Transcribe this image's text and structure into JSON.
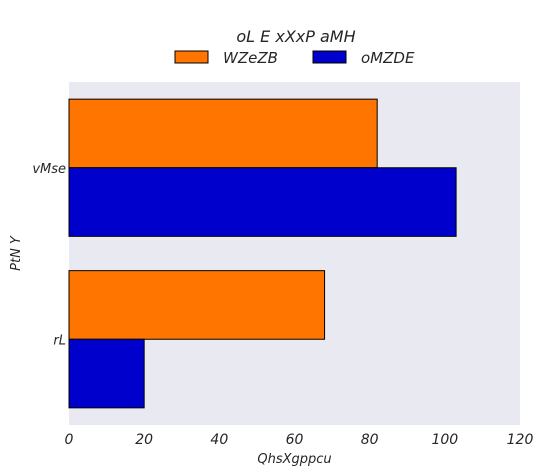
{
  "chart_data": {
    "type": "bar",
    "orientation": "horizontal",
    "legend_title": "oL E xXxP aMH",
    "legend_placement": "top-center",
    "xlabel": "QhsXgppcu",
    "ylabel": "PtN Y",
    "xlim": [
      0,
      120
    ],
    "xticks": [
      0,
      20,
      40,
      60,
      80,
      100,
      120
    ],
    "categories": [
      "vMse",
      "rL"
    ],
    "series": [
      {
        "name": "WZeZB",
        "color": "#ff7500",
        "values": [
          82,
          68
        ]
      },
      {
        "name": "oMZDE",
        "color": "#0000cc",
        "values": [
          103,
          20
        ]
      }
    ],
    "background_color": "#e9e9f1",
    "grid": false
  }
}
